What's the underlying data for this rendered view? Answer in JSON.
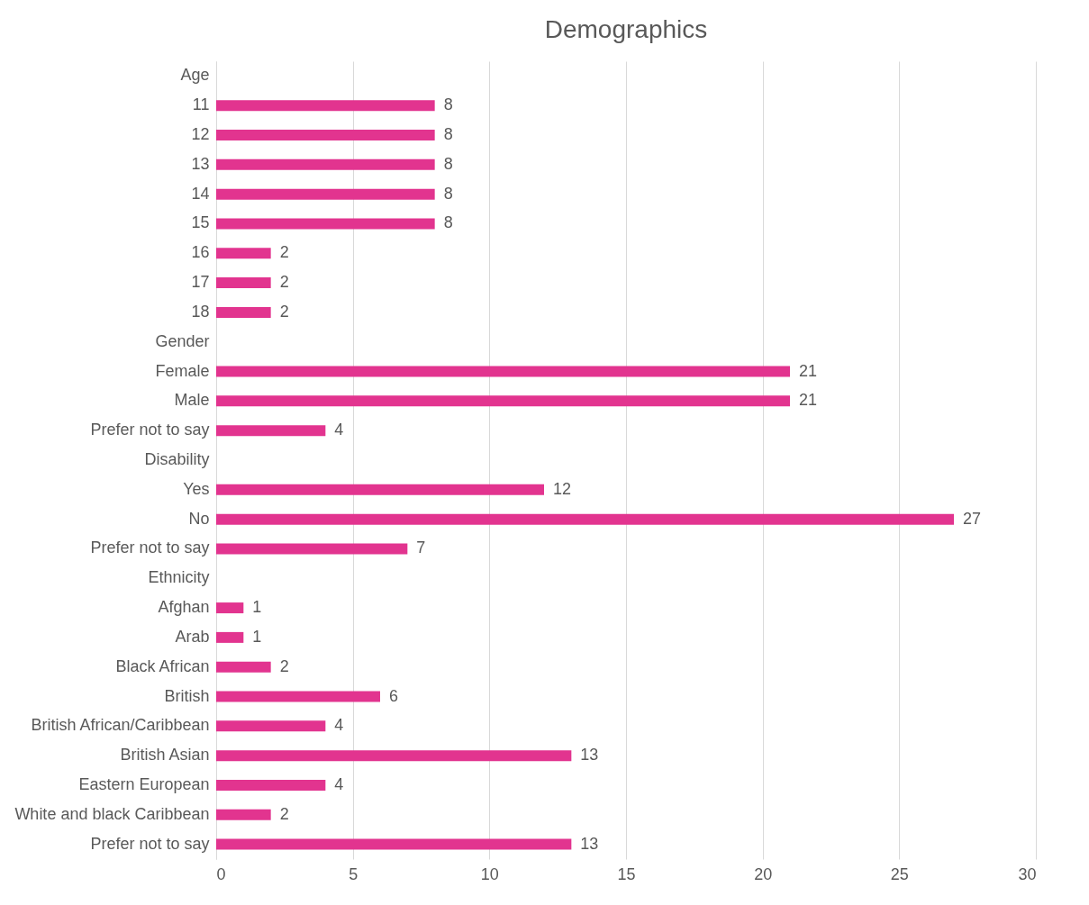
{
  "chart_data": {
    "type": "bar",
    "orientation": "horizontal",
    "title": "Demographics",
    "categories": [
      "Age",
      "11",
      "12",
      "13",
      "14",
      "15",
      "16",
      "17",
      "18",
      "Gender",
      "Female",
      "Male",
      "Prefer not to say",
      "Disability",
      "Yes",
      "No",
      "Prefer not to say",
      "Ethnicity",
      "Afghan",
      "Arab",
      "Black African",
      "British",
      "British African/Caribbean",
      "British Asian",
      "Eastern European",
      "White and black Caribbean",
      "Prefer not to say"
    ],
    "values": [
      null,
      8,
      8,
      8,
      8,
      8,
      2,
      2,
      2,
      null,
      21,
      21,
      4,
      null,
      12,
      27,
      7,
      null,
      1,
      1,
      2,
      6,
      4,
      13,
      4,
      2,
      13
    ],
    "color": "#e2348f",
    "xlim": [
      0,
      30
    ],
    "xticks": [
      0,
      5,
      10,
      15,
      20,
      25,
      30
    ],
    "grid": "x",
    "data_labels": true
  }
}
